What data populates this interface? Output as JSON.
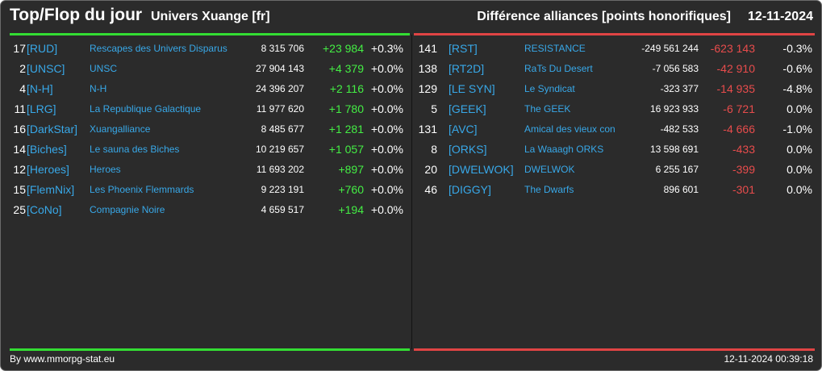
{
  "header": {
    "title": "Top/Flop du jour",
    "universe": "Univers Xuange [fr]",
    "subtitle": "Différence alliances [points honorifiques]",
    "date": "12-11-2024"
  },
  "colors": {
    "background": "#2b2b2b",
    "positive": "#44ee44",
    "negative": "#e84c4c",
    "tag": "#38a8e8",
    "top_bar": "#33dd33",
    "flop_bar": "#e04444"
  },
  "top": [
    {
      "rank": "17",
      "tag": "[RUD]",
      "name": "Rescapes des Univers Disparus",
      "points": "8 315 706",
      "diff": "+23 984",
      "pct": "+0.3%"
    },
    {
      "rank": "2",
      "tag": "[UNSC]",
      "name": "UNSC",
      "points": "27 904 143",
      "diff": "+4 379",
      "pct": "+0.0%"
    },
    {
      "rank": "4",
      "tag": "[N-H]",
      "name": "N-H",
      "points": "24 396 207",
      "diff": "+2 116",
      "pct": "+0.0%"
    },
    {
      "rank": "11",
      "tag": "[LRG]",
      "name": "La Republique Galactique",
      "points": "11 977 620",
      "diff": "+1 780",
      "pct": "+0.0%"
    },
    {
      "rank": "16",
      "tag": "[DarkStar]",
      "name": "Xuangalliance",
      "points": "8 485 677",
      "diff": "+1 281",
      "pct": "+0.0%"
    },
    {
      "rank": "14",
      "tag": "[Biches]",
      "name": "Le sauna des Biches",
      "points": "10 219 657",
      "diff": "+1 057",
      "pct": "+0.0%"
    },
    {
      "rank": "12",
      "tag": "[Heroes]",
      "name": "Heroes",
      "points": "11 693 202",
      "diff": "+897",
      "pct": "+0.0%"
    },
    {
      "rank": "15",
      "tag": "[FlemNix]",
      "name": "Les Phoenix Flemmards",
      "points": "9 223 191",
      "diff": "+760",
      "pct": "+0.0%"
    },
    {
      "rank": "25",
      "tag": "[CoNo]",
      "name": "Compagnie Noire",
      "points": "4 659 517",
      "diff": "+194",
      "pct": "+0.0%"
    }
  ],
  "flop": [
    {
      "rank": "141",
      "tag": "[RST]",
      "name": "RESISTANCE",
      "points": "-249 561 244",
      "diff": "-623 143",
      "pct": "-0.3%"
    },
    {
      "rank": "138",
      "tag": "[RT2D]",
      "name": "RaTs Du Desert",
      "points": "-7 056 583",
      "diff": "-42 910",
      "pct": "-0.6%"
    },
    {
      "rank": "129",
      "tag": "[LE SYN]",
      "name": "Le Syndicat",
      "points": "-323 377",
      "diff": "-14 935",
      "pct": "-4.8%"
    },
    {
      "rank": "5",
      "tag": "[GEEK]",
      "name": "The GEEK",
      "points": "16 923 933",
      "diff": "-6 721",
      "pct": "0.0%"
    },
    {
      "rank": "131",
      "tag": "[AVC]",
      "name": "Amical des vieux con",
      "points": "-482 533",
      "diff": "-4 666",
      "pct": "-1.0%"
    },
    {
      "rank": "8",
      "tag": "[ORKS]",
      "name": "La Waaagh ORKS",
      "points": "13 598 691",
      "diff": "-433",
      "pct": "0.0%"
    },
    {
      "rank": "20",
      "tag": "[DWELWOK]",
      "name": "DWELWOK",
      "points": "6 255 167",
      "diff": "-399",
      "pct": "0.0%"
    },
    {
      "rank": "46",
      "tag": "[DIGGY]",
      "name": "The Dwarfs",
      "points": "896 601",
      "diff": "-301",
      "pct": "0.0%"
    }
  ],
  "footer": {
    "source": "By www.mmorpg-stat.eu",
    "timestamp": "12-11-2024 00:39:18"
  }
}
